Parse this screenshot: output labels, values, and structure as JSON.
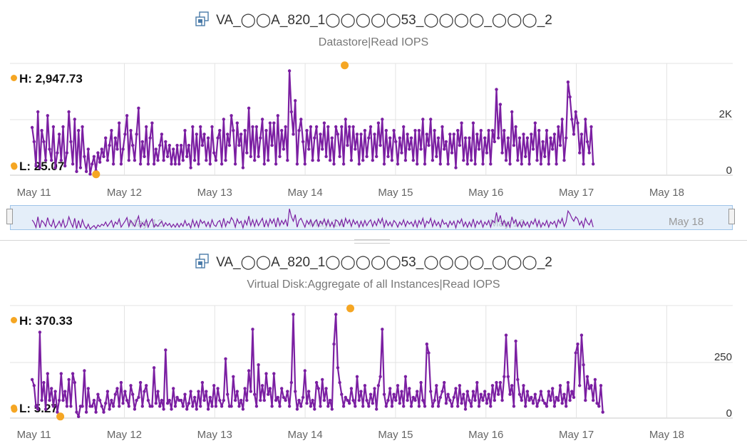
{
  "colors": {
    "series": "#7b1fa2",
    "marker": "#f5a623",
    "grid": "#e3e3e3",
    "navigator_bg": "#e4eef9",
    "navigator_border": "#9fc4e8"
  },
  "charts": [
    {
      "object_name": "VA_◯◯A_820_1◯◯◯◯◯53_◯◯◯◯_◯◯◯_2",
      "metric": "Datastore|Read IOPS",
      "high_label": "H: 2,947.73",
      "low_label": "L: 25.07",
      "icon": "virtual-machine-icon"
    },
    {
      "object_name": "VA_◯◯A_820_1◯◯◯◯◯53_◯◯◯◯_◯◯◯_2",
      "metric": "Virtual Disk:Aggregate of all Instances|Read IOPS",
      "high_label": "H: 370.33",
      "low_label": "L: 5.27",
      "icon": "virtual-machine-icon"
    }
  ],
  "navigator": {
    "label": "May 18"
  },
  "chart_data": [
    {
      "type": "line",
      "title": "Datastore|Read IOPS",
      "x_start": "May 11",
      "x_end": "May 18",
      "x_ticks": [
        "May 11",
        "May 12",
        "May 13",
        "May 14",
        "May 15",
        "May 16",
        "May 17",
        "May 18"
      ],
      "y_ticks": [
        "0",
        "2K"
      ],
      "ylim": [
        0,
        3000
      ],
      "high": {
        "value": 2947.73,
        "x": "May 14 10:30"
      },
      "low": {
        "value": 25.07,
        "x": "May 11 16:30"
      },
      "series": [
        {
          "x_start_day": 10.98,
          "x_step_days": 0.0214,
          "values": [
            1280,
            900,
            250,
            1700,
            200,
            1200,
            900,
            400,
            1600,
            700,
            400,
            1300,
            200,
            600,
            1100,
            400,
            1300,
            250,
            600,
            1700,
            900,
            300,
            1500,
            100,
            1200,
            200,
            1300,
            500,
            100,
            700,
            30,
            300,
            500,
            120,
            600,
            350,
            700,
            500,
            1000,
            400,
            800,
            1200,
            300,
            1000,
            700,
            1400,
            300,
            700,
            1100,
            1600,
            400,
            1200,
            800,
            400,
            1100,
            1800,
            300,
            900,
            500,
            1300,
            300,
            1000,
            1400,
            300,
            700,
            400,
            800,
            1100,
            400,
            900,
            500,
            800,
            300,
            700,
            300,
            800,
            300,
            800,
            400,
            1200,
            500,
            800,
            200,
            1300,
            400,
            1100,
            300,
            1300,
            800,
            1100,
            400,
            1000,
            300,
            1300,
            600,
            400,
            1000,
            1200,
            300,
            1500,
            400,
            1100,
            800,
            1600,
            1200,
            300,
            1400,
            800,
            1100,
            200,
            1200,
            600,
            1800,
            500,
            1300,
            400,
            1300,
            500,
            1000,
            1500,
            300,
            1200,
            400,
            1400,
            800,
            1400,
            300,
            1600,
            500,
            1200,
            700,
            1300,
            400,
            2800,
            1700,
            1100,
            2000,
            300,
            1200,
            1500,
            900,
            300,
            1200,
            700,
            1300,
            400,
            1000,
            1300,
            400,
            1100,
            700,
            1400,
            500,
            1300,
            400,
            1000,
            300,
            1300,
            1100,
            500,
            1300,
            300,
            1500,
            800,
            1300,
            400,
            1300,
            700,
            1100,
            300,
            1100,
            400,
            1200,
            500,
            1000,
            1300,
            400,
            1100,
            500,
            1400,
            800,
            1500,
            300,
            1200,
            500,
            1000,
            400,
            1200,
            900,
            300,
            1000,
            600,
            1300,
            400,
            1100,
            700,
            1000,
            400,
            1200,
            300,
            1200,
            700,
            1500,
            300,
            1100,
            800,
            1500,
            400,
            1200,
            500,
            1000,
            300,
            1300,
            700,
            900,
            300,
            1100,
            600,
            1100,
            200,
            1200,
            800,
            1400,
            400,
            1000,
            300,
            1000,
            400,
            1400,
            300,
            1100,
            700,
            1200,
            300,
            1000,
            600,
            1200,
            300,
            1200,
            900,
            2300,
            1000,
            1900,
            600,
            1200,
            400,
            1000,
            300,
            1700,
            800,
            1300,
            400,
            1000,
            300,
            1100,
            500,
            1000,
            300,
            1100,
            700,
            1400,
            400,
            1200,
            300,
            900,
            500,
            1200,
            300,
            1000,
            700,
            1100,
            300,
            1300,
            800,
            1500,
            400,
            1000,
            2500,
            2100,
            1500,
            1100,
            1700,
            1400,
            600,
            1100,
            300,
            1500,
            900,
            600,
            1300,
            300
          ]
        }
      ]
    },
    {
      "type": "line",
      "title": "Virtual Disk:Aggregate of all Instances|Read IOPS",
      "x_start": "May 11",
      "x_end": "May 18",
      "x_ticks": [
        "May 11",
        "May 12",
        "May 13",
        "May 14",
        "May 15",
        "May 16",
        "May 17",
        "May 18"
      ],
      "y_ticks": [
        "0",
        "250"
      ],
      "ylim": [
        0,
        380
      ],
      "high": {
        "value": 370.33,
        "x": "May 14 12:00"
      },
      "low": {
        "value": 5.27,
        "x": "May 11 07:00"
      },
      "series": [
        {
          "x_start_day": 10.98,
          "x_step_days": 0.0214,
          "values": [
            130,
            110,
            40,
            30,
            290,
            60,
            120,
            30,
            150,
            60,
            100,
            40,
            90,
            20,
            60,
            150,
            60,
            90,
            40,
            130,
            40,
            150,
            120,
            20,
            5,
            40,
            40,
            160,
            20,
            100,
            40,
            40,
            60,
            20,
            80,
            60,
            40,
            20,
            50,
            90,
            30,
            60,
            40,
            80,
            100,
            40,
            120,
            50,
            90,
            60,
            40,
            110,
            80,
            30,
            60,
            70,
            120,
            40,
            90,
            110,
            60,
            40,
            40,
            170,
            50,
            90,
            40,
            60,
            30,
            230,
            50,
            60,
            30,
            100,
            40,
            70,
            60,
            60,
            40,
            80,
            30,
            50,
            90,
            40,
            70,
            30,
            90,
            40,
            120,
            60,
            90,
            30,
            70,
            40,
            110,
            40,
            100,
            60,
            40,
            60,
            200,
            80,
            40,
            40,
            140,
            60,
            90,
            40,
            60,
            30,
            100,
            60,
            160,
            90,
            300,
            80,
            40,
            180,
            60,
            110,
            60,
            150,
            80,
            100,
            40,
            150,
            60,
            70,
            40,
            100,
            70,
            60,
            90,
            40,
            120,
            350,
            90,
            30,
            60,
            40,
            70,
            160,
            50,
            90,
            40,
            60,
            30,
            120,
            100,
            40,
            130,
            60,
            100,
            40,
            60,
            30,
            250,
            350,
            170,
            120,
            80,
            40,
            70,
            60,
            50,
            100,
            60,
            40,
            140,
            60,
            90,
            40,
            110,
            60,
            40,
            80,
            50,
            100,
            30,
            110,
            140,
            300,
            80,
            40,
            60,
            100,
            40,
            80,
            60,
            110,
            50,
            90,
            40,
            140,
            60,
            100,
            40,
            70,
            60,
            90,
            40,
            120,
            60,
            40,
            250,
            220,
            90,
            40,
            60,
            110,
            40,
            70,
            90,
            120,
            50,
            80,
            60,
            40,
            70,
            100,
            40,
            110,
            50,
            80,
            30,
            90,
            60,
            40,
            90,
            60,
            120,
            40,
            80,
            60,
            90,
            50,
            80,
            40,
            110,
            60,
            120,
            80,
            120,
            60,
            140,
            280,
            140,
            80,
            110,
            40,
            260,
            130,
            80,
            60,
            110,
            40,
            90,
            60,
            70,
            50,
            80,
            40,
            60,
            90,
            60,
            50,
            40,
            90,
            60,
            100,
            40,
            70,
            60,
            110,
            50,
            80,
            40,
            120,
            60,
            90,
            70,
            220,
            250,
            110,
            280,
            180,
            60,
            140,
            100,
            110,
            60,
            130,
            50,
            40,
            110,
            20
          ]
        }
      ]
    }
  ]
}
